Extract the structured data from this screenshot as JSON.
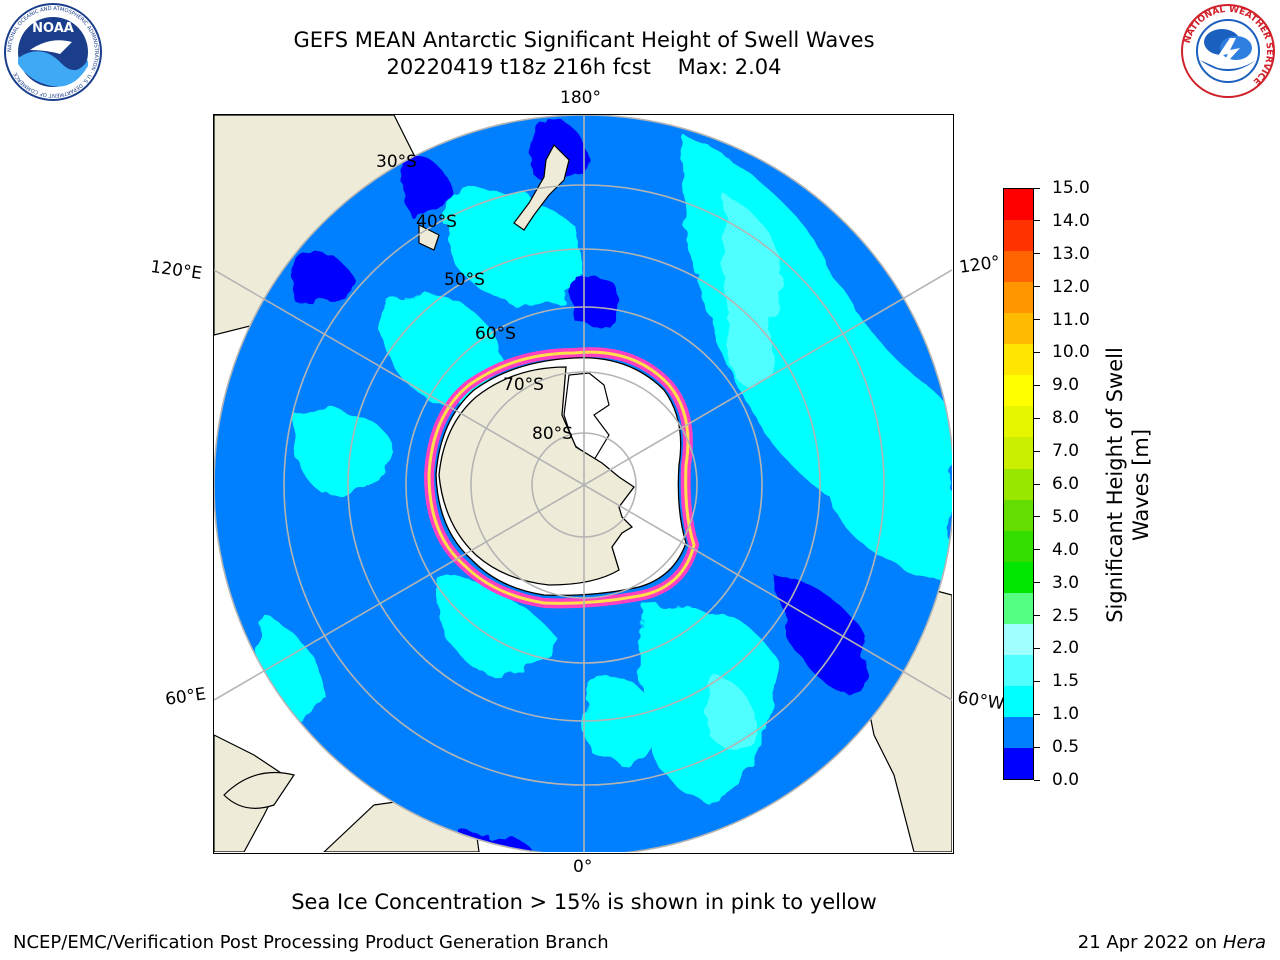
{
  "header": {
    "title_line1": "GEFS MEAN Antarctic Significant Height of Swell Waves",
    "title_line2": "20220419 t18z 216h fcst    Max: 2.04"
  },
  "logos": {
    "noaa": {
      "text": "NOAA",
      "ring_text": "NATIONAL OCEANIC AND ATMOSPHERIC ADMINISTRATION · U.S. DEPARTMENT OF COMMERCE"
    },
    "nws": {
      "ring_text": "NATIONAL WEATHER SERVICE"
    }
  },
  "map": {
    "projection": "south polar stereographic",
    "lat_labels": [
      "30°S",
      "40°S",
      "50°S",
      "60°S",
      "70°S",
      "80°S"
    ],
    "lon_labels": {
      "top": "180°",
      "bottom": "0°",
      "upper_left": "120°E",
      "lower_left": "60°E",
      "upper_right": "120°",
      "lower_right": "60°W"
    },
    "colors": {
      "land": "#eeecd9",
      "ice_shelf": "#ffffff",
      "graticule": "#b4b4b4",
      "coast": "#000000"
    }
  },
  "colorbar": {
    "title_line1": "Significant Height of Swell",
    "title_line2": "Waves [m]",
    "tick_labels": [
      "0.0",
      "0.5",
      "1.0",
      "1.5",
      "2.0",
      "2.5",
      "3.0",
      "4.0",
      "5.0",
      "6.0",
      "7.0",
      "8.0",
      "9.0",
      "10.0",
      "11.0",
      "12.0",
      "13.0",
      "14.0",
      "15.0"
    ],
    "colors": [
      "#0000ff",
      "#0080ff",
      "#00ffff",
      "#50ffff",
      "#a0ffff",
      "#55ff80",
      "#00e600",
      "#33dd00",
      "#66dd00",
      "#99e600",
      "#ccee00",
      "#e6f500",
      "#ffff00",
      "#ffe600",
      "#ffbb00",
      "#ff9600",
      "#ff6400",
      "#ff3200",
      "#ff0000"
    ]
  },
  "notes": {
    "ice": "Sea Ice Concentration > 15% is shown in pink to yellow"
  },
  "footer": {
    "left": "NCEP/EMC/Verification Post Processing Product Generation Branch",
    "right_date": "21 Apr 2022 on",
    "right_machine": "Hera"
  }
}
